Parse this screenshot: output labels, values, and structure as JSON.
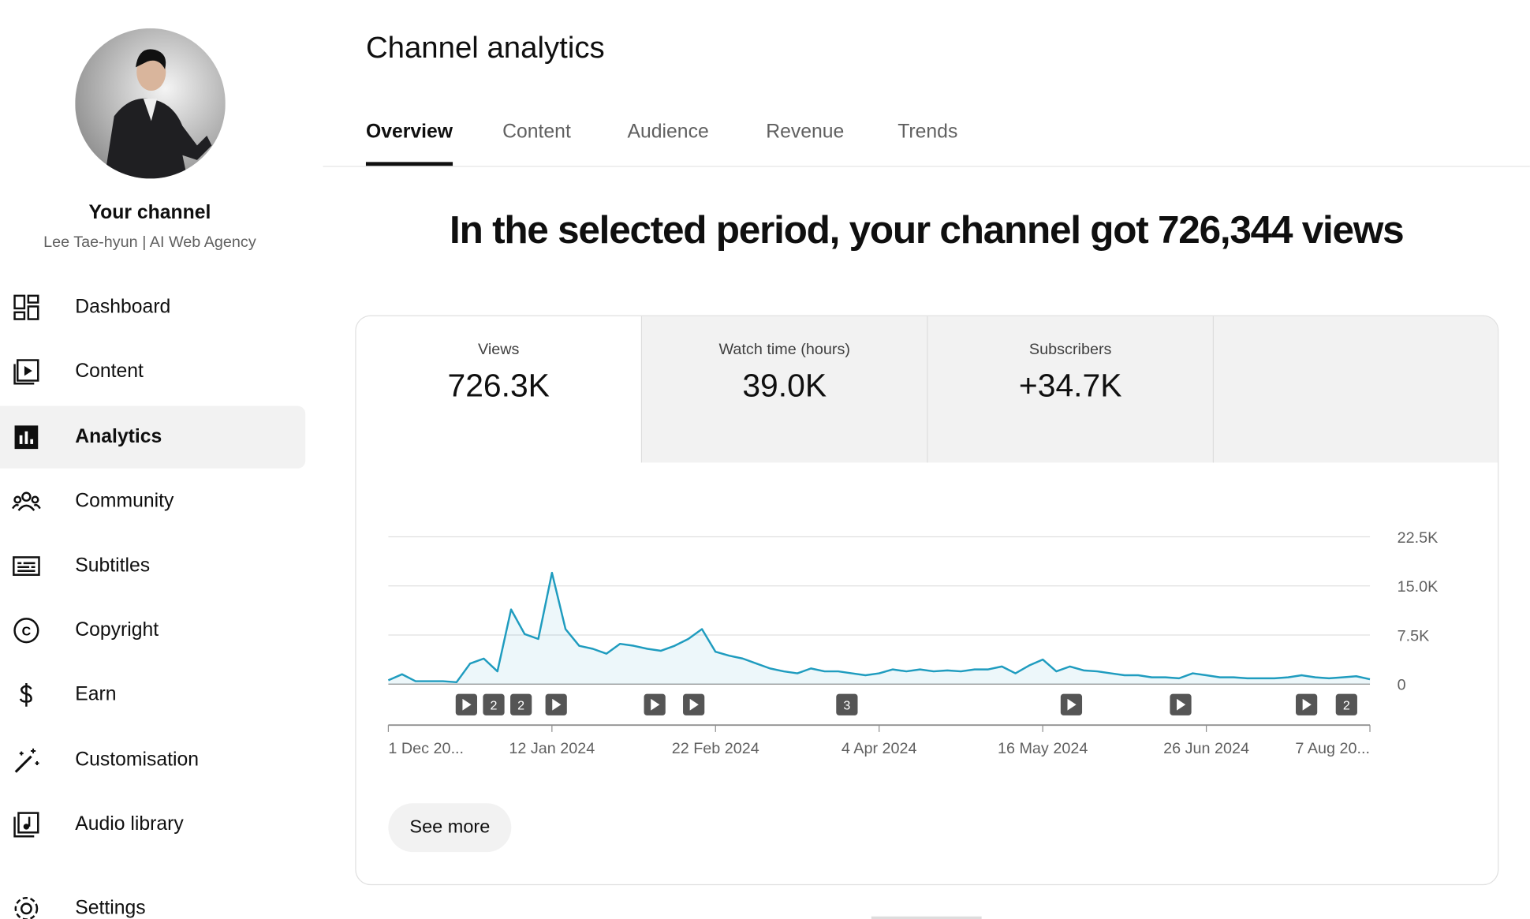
{
  "sidebar": {
    "channel_title": "Your channel",
    "channel_name": "Lee Tae-hyun | AI Web Agency",
    "nav": [
      "Dashboard",
      "Content",
      "Analytics",
      "Community",
      "Subtitles",
      "Copyright",
      "Earn",
      "Customisation",
      "Audio library",
      "Settings"
    ],
    "active": "Analytics"
  },
  "header": {
    "title": "Channel analytics",
    "tabs": [
      "Overview",
      "Content",
      "Audience",
      "Revenue",
      "Trends"
    ],
    "active_tab": "Overview"
  },
  "headline": "In the selected period, your channel got 726,344 views",
  "metrics": [
    {
      "label": "Views",
      "value": "726.3K"
    },
    {
      "label": "Watch time (hours)",
      "value": "39.0K"
    },
    {
      "label": "Subscribers",
      "value": "+34.7K"
    }
  ],
  "chart_data": {
    "type": "line",
    "color": "#1f9cbf",
    "categories": [
      "1 Dec 20...",
      null,
      null,
      null,
      null,
      null,
      null,
      null,
      null,
      null,
      null,
      null,
      "12 Jan 2024",
      null,
      null,
      null,
      null,
      null,
      null,
      null,
      null,
      null,
      null,
      null,
      "22 Feb 2024",
      null,
      null,
      null,
      null,
      null,
      null,
      null,
      null,
      null,
      null,
      null,
      "4 Apr 2024",
      null,
      null,
      null,
      null,
      null,
      null,
      null,
      null,
      null,
      null,
      null,
      "16 May 2024",
      null,
      null,
      null,
      null,
      null,
      null,
      null,
      null,
      null,
      null,
      null,
      "26 Jun 2024",
      null,
      null,
      null,
      null,
      null,
      null,
      null,
      null,
      null,
      null,
      null,
      "7 Aug 20..."
    ],
    "values": [
      600,
      1500,
      450,
      450,
      450,
      300,
      3150,
      3900,
      1950,
      11400,
      7650,
      6900,
      17000,
      8400,
      5850,
      5400,
      4650,
      6150,
      5850,
      5400,
      5100,
      5850,
      6900,
      8400,
      4950,
      4350,
      3900,
      3150,
      2400,
      1950,
      1650,
      2400,
      1950,
      1950,
      1650,
      1350,
      1650,
      2250,
      1950,
      2250,
      1950,
      2100,
      1950,
      2250,
      2250,
      2700,
      1650,
      2850,
      3750,
      1950,
      2700,
      2100,
      1950,
      1650,
      1350,
      1350,
      1050,
      1050,
      900,
      1650,
      1350,
      1050,
      1050,
      900,
      900,
      900,
      1050,
      1350,
      1050,
      900,
      1050,
      1200,
      750
    ],
    "ylim": [
      0,
      22500
    ],
    "yticks": [
      0,
      {
        "value": 7500,
        "label": "7.5K"
      },
      {
        "value": 15000,
        "label": "15.0K"
      },
      {
        "value": 22500,
        "label": "22.5K"
      }
    ],
    "grid": true,
    "markers": [
      "2",
      "2",
      "3",
      "2"
    ]
  },
  "button": "See more"
}
